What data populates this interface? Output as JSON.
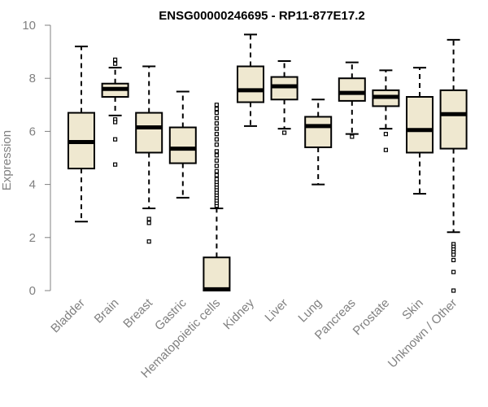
{
  "chart_data": {
    "type": "box",
    "title": "ENSG00000246695 - RP11-877E17.2",
    "xlabel": "",
    "ylabel": "Expression",
    "ylim": [
      0,
      10
    ],
    "yticks": [
      0,
      2,
      4,
      6,
      8,
      10
    ],
    "grid": false,
    "colors": {
      "box_fill": "#efe8d0",
      "box_stroke": "#000000",
      "axis": "#808080",
      "label": "#808080"
    },
    "categories": [
      "Bladder",
      "Brain",
      "Breast",
      "Gastric",
      "Hematopoietic cells",
      "Kidney",
      "Liver",
      "Lung",
      "Pancreas",
      "Prostate",
      "Skin",
      "Unknown / Other"
    ],
    "boxes": [
      {
        "name": "Bladder",
        "whisker_low": 2.6,
        "q1": 4.6,
        "median": 5.6,
        "q3": 6.7,
        "whisker_high": 9.2,
        "outliers": []
      },
      {
        "name": "Brain",
        "whisker_low": 6.6,
        "q1": 7.3,
        "median": 7.6,
        "q3": 7.8,
        "whisker_high": 8.4,
        "outliers": [
          8.55,
          8.7,
          6.45,
          6.35,
          5.7,
          4.75
        ]
      },
      {
        "name": "Breast",
        "whisker_low": 3.1,
        "q1": 5.2,
        "median": 6.15,
        "q3": 6.7,
        "whisker_high": 8.45,
        "outliers": [
          2.7,
          2.55,
          1.85
        ]
      },
      {
        "name": "Gastric",
        "whisker_low": 3.5,
        "q1": 4.8,
        "median": 5.35,
        "q3": 6.15,
        "whisker_high": 7.5,
        "outliers": []
      },
      {
        "name": "Hematopoietic cells",
        "whisker_low": 0.0,
        "q1": 0.0,
        "median": 0.05,
        "q3": 1.25,
        "whisker_high": 3.1,
        "outliers": [
          3.2,
          3.3,
          3.4,
          3.5,
          3.6,
          3.7,
          3.8,
          3.9,
          4.0,
          4.1,
          4.2,
          4.35,
          4.5,
          4.7,
          4.9,
          5.1,
          5.25,
          5.5,
          5.7,
          5.9,
          6.1,
          6.3,
          6.5,
          6.7,
          6.85,
          7.0
        ]
      },
      {
        "name": "Kidney",
        "whisker_low": 6.2,
        "q1": 7.1,
        "median": 7.55,
        "q3": 8.45,
        "whisker_high": 9.65,
        "outliers": []
      },
      {
        "name": "Liver",
        "whisker_low": 6.1,
        "q1": 7.2,
        "median": 7.7,
        "q3": 8.05,
        "whisker_high": 8.65,
        "outliers": [
          5.95
        ]
      },
      {
        "name": "Lung",
        "whisker_low": 4.0,
        "q1": 5.4,
        "median": 6.2,
        "q3": 6.55,
        "whisker_high": 7.2,
        "outliers": []
      },
      {
        "name": "Pancreas",
        "whisker_low": 5.9,
        "q1": 7.15,
        "median": 7.45,
        "q3": 8.0,
        "whisker_high": 8.6,
        "outliers": [
          5.8
        ]
      },
      {
        "name": "Prostate",
        "whisker_low": 6.1,
        "q1": 6.95,
        "median": 7.3,
        "q3": 7.55,
        "whisker_high": 8.3,
        "outliers": [
          5.9,
          5.3
        ]
      },
      {
        "name": "Skin",
        "whisker_low": 3.65,
        "q1": 5.2,
        "median": 6.05,
        "q3": 7.3,
        "whisker_high": 8.4,
        "outliers": []
      },
      {
        "name": "Unknown / Other",
        "whisker_low": 2.2,
        "q1": 5.35,
        "median": 6.65,
        "q3": 7.55,
        "whisker_high": 9.45,
        "outliers": [
          1.75,
          1.65,
          1.55,
          1.45,
          1.35,
          1.15,
          0.7,
          0.0
        ]
      }
    ]
  }
}
